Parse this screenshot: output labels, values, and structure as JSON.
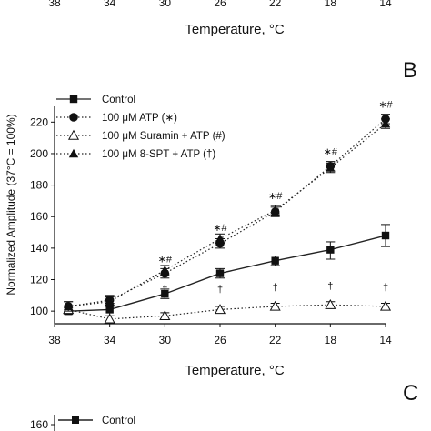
{
  "chart_data": {
    "type": "line",
    "panel_label": "B",
    "next_panel_label": "C",
    "xlabel": "Temperature, °C",
    "ylabel": "Normalized Amplitude (37°C = 100%)",
    "x": [
      37,
      34,
      30,
      26,
      22,
      18,
      14
    ],
    "x_ticks": [
      38,
      34,
      30,
      26,
      22,
      18,
      14
    ],
    "xlim": [
      38,
      14
    ],
    "y_ticks": [
      100,
      120,
      140,
      160,
      180,
      200,
      220
    ],
    "ylim": [
      92,
      230
    ],
    "series": [
      {
        "name": "Control",
        "marker": "square",
        "line": "solid",
        "values": [
          100,
          101,
          111,
          124,
          132,
          139,
          148
        ],
        "err_plus": [
          2,
          4,
          3,
          3,
          3,
          5,
          7
        ],
        "err_minus": [
          2,
          4,
          3,
          3,
          3,
          6,
          7
        ]
      },
      {
        "name": "100 μM ATP (∗)",
        "marker": "circle",
        "line": "dotted",
        "values": [
          103,
          107,
          124,
          143,
          163,
          192,
          222
        ],
        "err_plus": [
          3,
          3,
          3,
          3,
          3,
          3,
          3
        ],
        "err_minus": [
          3,
          3,
          3,
          3,
          3,
          3,
          3
        ]
      },
      {
        "name": "100 μM Suramin + ATP (#)",
        "marker": "open-triangle",
        "line": "dotted",
        "values": [
          101,
          95,
          97,
          101,
          103,
          104,
          103
        ],
        "err_plus": [
          2,
          2,
          2,
          2,
          2,
          2,
          2
        ],
        "err_minus": [
          2,
          2,
          2,
          2,
          2,
          2,
          2
        ]
      },
      {
        "name": "100 μM 8-SPT + ATP (†)",
        "marker": "triangle",
        "line": "dotted",
        "values": [
          103,
          106,
          126,
          146,
          164,
          191,
          219
        ],
        "err_plus": [
          3,
          3,
          3,
          3,
          3,
          3,
          3
        ],
        "err_minus": [
          3,
          3,
          3,
          3,
          3,
          3,
          3
        ]
      }
    ],
    "annotations": [
      {
        "x": 30,
        "y": 131,
        "text": "∗#"
      },
      {
        "x": 26,
        "y": 151,
        "text": "∗#"
      },
      {
        "x": 22,
        "y": 171,
        "text": "∗#"
      },
      {
        "x": 18,
        "y": 199,
        "text": "∗#"
      },
      {
        "x": 14,
        "y": 229,
        "text": "∗#"
      },
      {
        "x": 30,
        "y": 112,
        "text": "†"
      },
      {
        "x": 26,
        "y": 112,
        "text": "†"
      },
      {
        "x": 22,
        "y": 113,
        "text": "†"
      },
      {
        "x": 18,
        "y": 114,
        "text": "†"
      },
      {
        "x": 14,
        "y": 113,
        "text": "†"
      }
    ],
    "top_fragment": {
      "x_ticks": [
        38,
        34,
        30,
        26,
        22,
        18,
        14
      ],
      "xlabel": "Temperature, °C"
    },
    "bottom_fragment": {
      "y_tick": 160,
      "legend_first": "Control"
    }
  }
}
